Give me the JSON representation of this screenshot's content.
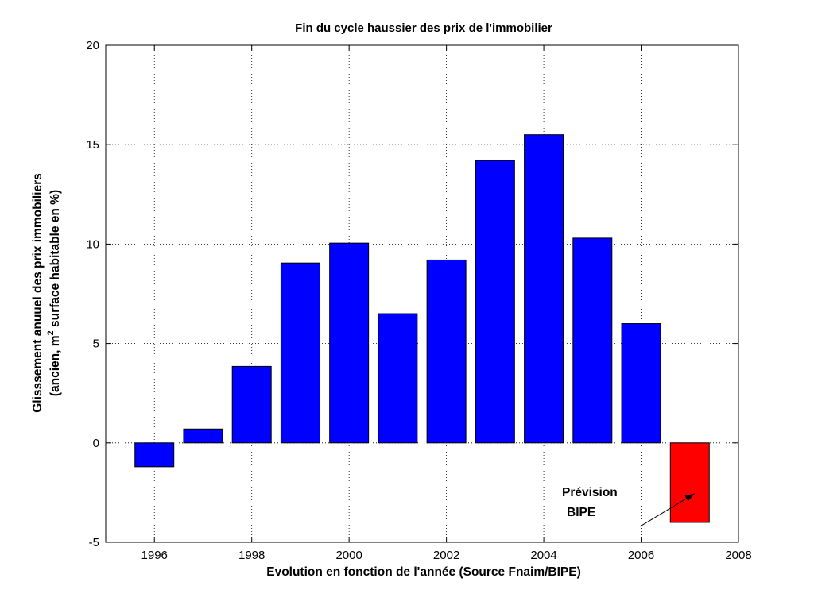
{
  "chart_data": {
    "type": "bar",
    "title": "Fin du cycle haussier des prix de l'immobilier",
    "xlabel": "Evolution en fonction de l'année (Source Fnaim/BIPE)",
    "ylabel_line1": "Glisssement anuuel des prix immobiliers",
    "ylabel_line2_prefix": "(ancien, m",
    "ylabel_line2_sup": "2",
    "ylabel_line2_suffix": " surface habitable en %)",
    "x": [
      1996,
      1997,
      1998,
      1999,
      2000,
      2001,
      2002,
      2003,
      2004,
      2005,
      2006,
      2007
    ],
    "values": [
      -1.2,
      0.7,
      3.85,
      9.05,
      10.05,
      6.5,
      9.2,
      14.2,
      15.5,
      10.3,
      6.0,
      -4.0
    ],
    "bar_colors": [
      "#0000ff",
      "#0000ff",
      "#0000ff",
      "#0000ff",
      "#0000ff",
      "#0000ff",
      "#0000ff",
      "#0000ff",
      "#0000ff",
      "#0000ff",
      "#0000ff",
      "#ff0000"
    ],
    "xlim": [
      1995,
      2008
    ],
    "ylim": [
      -5,
      20
    ],
    "xticks": [
      "1996",
      "1998",
      "2000",
      "2002",
      "2004",
      "2006",
      "2008"
    ],
    "yticks": [
      "-5",
      "0",
      "5",
      "10",
      "15",
      "20"
    ],
    "grid": true,
    "annotation": {
      "line1": "Prévision",
      "line2": "BIPE",
      "arrow_from": [
        2005.98,
        -4.2
      ],
      "arrow_to": [
        2007.1,
        -2.55
      ]
    }
  }
}
